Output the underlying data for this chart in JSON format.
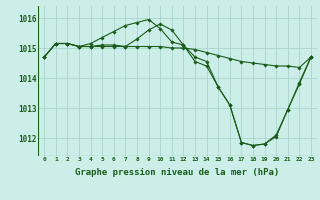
{
  "background_color": "#cceee8",
  "grid_color": "#aad4cc",
  "line_color": "#1a5c1a",
  "marker": "D",
  "marker_size": 1.8,
  "line_width": 0.8,
  "xlabel": "Graphe pression niveau de la mer (hPa)",
  "xlabel_fontsize": 6.5,
  "xtick_labels": [
    "0",
    "1",
    "2",
    "3",
    "4",
    "5",
    "6",
    "7",
    "8",
    "9",
    "10",
    "11",
    "12",
    "13",
    "14",
    "15",
    "16",
    "17",
    "18",
    "19",
    "20",
    "21",
    "22",
    "23"
  ],
  "ylim": [
    1011.4,
    1016.4
  ],
  "yticks": [
    1012,
    1013,
    1014,
    1015,
    1016
  ],
  "series1": [
    1014.7,
    1015.15,
    1015.15,
    1015.05,
    1015.05,
    1015.1,
    1015.1,
    1015.05,
    1015.05,
    1015.05,
    1015.05,
    1015.0,
    1015.0,
    1014.95,
    1014.85,
    1014.75,
    1014.65,
    1014.55,
    1014.5,
    1014.45,
    1014.4,
    1014.4,
    1014.35,
    1014.7
  ],
  "series2": [
    1014.7,
    1015.15,
    1015.15,
    1015.05,
    1015.15,
    1015.35,
    1015.55,
    1015.75,
    1015.85,
    1015.95,
    1015.65,
    1015.2,
    1015.1,
    1014.7,
    1014.55,
    1013.7,
    1013.1,
    1011.85,
    1011.75,
    1011.8,
    1012.05,
    1012.95,
    1013.8,
    1014.7
  ],
  "series3": [
    1014.7,
    1015.15,
    1015.15,
    1015.05,
    1015.05,
    1015.05,
    1015.05,
    1015.05,
    1015.3,
    1015.6,
    1015.8,
    1015.6,
    1015.1,
    1014.55,
    1014.4,
    1013.7,
    1013.1,
    1011.85,
    1011.75,
    1011.8,
    1012.1,
    1012.95,
    1013.85,
    1014.7
  ]
}
